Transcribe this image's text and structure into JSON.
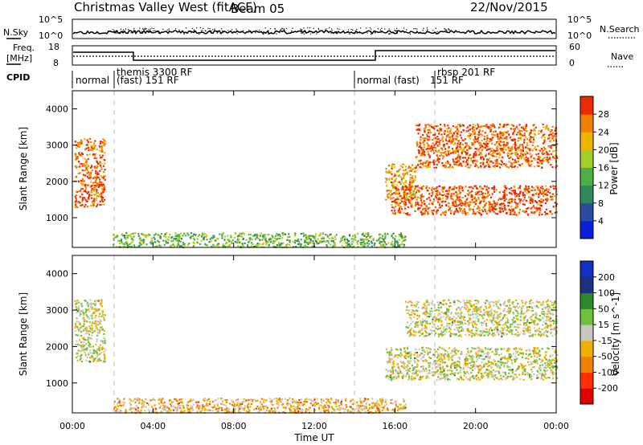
{
  "header": {
    "title": "Christmas Valley West (fitACF)",
    "beam": "Beam 05",
    "date": "22/Nov/2015"
  },
  "top_panels": {
    "nsky_label": "N.Sky",
    "nsearch_label": "N.Search",
    "nsky_ticks": [
      "10^5",
      "10^0"
    ],
    "nsky_right_ticks": [
      "10^5",
      "10^0"
    ],
    "freq_label_1": "Freq.",
    "freq_label_2": "[MHz]",
    "freq_ticks": [
      "18",
      "8"
    ],
    "nave_label": "Nave",
    "nave_ticks": [
      "60",
      "0"
    ],
    "cpid_label": "CPID",
    "cpid_modes": [
      "normal",
      "themis 3300 RF",
      "(fast) 151 RF",
      "normal (fast)",
      "151 RF",
      "rbsp 201 RF"
    ]
  },
  "chart_data": [
    {
      "type": "heatmap",
      "title": "",
      "ylabel": "Slant Range [km]",
      "xlabel": "",
      "x_ticks": [
        "00:00",
        "04:00",
        "08:00",
        "12:00",
        "16:00",
        "20:00",
        "00:00"
      ],
      "y_ticks": [
        "1000",
        "2000",
        "3000",
        "4000"
      ],
      "ylim": [
        180,
        4500
      ],
      "xlim_hours": [
        0,
        24
      ],
      "colorbar_label": "Power [dB]",
      "colorbar_ticks": [
        "28",
        "24",
        "20",
        "16",
        "12",
        "8",
        "4"
      ],
      "colorbar_range": [
        0,
        30
      ],
      "regions": [
        {
          "t0": 0.1,
          "t1": 1.6,
          "r0": 1300,
          "r1": 3200,
          "value": 26
        },
        {
          "t0": 15.5,
          "t1": 17.0,
          "r0": 1500,
          "r1": 2500,
          "value": 22
        },
        {
          "t0": 15.8,
          "t1": 24.0,
          "r0": 1100,
          "r1": 1900,
          "value": 27
        },
        {
          "t0": 17.0,
          "t1": 24.0,
          "r0": 2400,
          "r1": 3600,
          "value": 26
        },
        {
          "t0": 2.0,
          "t1": 16.5,
          "r0": 200,
          "r1": 600,
          "value": 14
        }
      ]
    },
    {
      "type": "heatmap",
      "title": "",
      "ylabel": "Slant Range [km]",
      "xlabel": "Time UT",
      "x_ticks": [
        "00:00",
        "04:00",
        "08:00",
        "12:00",
        "16:00",
        "20:00",
        "00:00"
      ],
      "y_ticks": [
        "1000",
        "2000",
        "3000",
        "4000"
      ],
      "ylim": [
        180,
        4500
      ],
      "xlim_hours": [
        0,
        24
      ],
      "colorbar_label": "Velocity [m s^-1]",
      "colorbar_ticks": [
        "200",
        "100",
        "50",
        "15",
        "-15",
        "-50",
        "-100",
        "-200"
      ],
      "colorbar_range": [
        -250,
        250
      ],
      "regions": [
        {
          "t0": 0.1,
          "t1": 1.6,
          "r0": 1600,
          "r1": 3300,
          "value": 0
        },
        {
          "t0": 15.5,
          "t1": 24.0,
          "r0": 1100,
          "r1": 2000,
          "value": 0
        },
        {
          "t0": 16.5,
          "t1": 24.0,
          "r0": 2300,
          "r1": 3300,
          "value": 0
        },
        {
          "t0": 2.0,
          "t1": 16.5,
          "r0": 200,
          "r1": 600,
          "value": -60
        }
      ]
    }
  ],
  "colors": {
    "power_scale": [
      "#0a1edc",
      "#2b4aa0",
      "#2e8b57",
      "#4fae4a",
      "#a4cc2a",
      "#f0b400",
      "#f08000",
      "#ee2a00"
    ],
    "velocity_scale": [
      "#e00000",
      "#ff3000",
      "#f08000",
      "#f0b000",
      "#c8c8c0",
      "#70c040",
      "#2a8a2a",
      "#203080",
      "#1030c0"
    ]
  }
}
